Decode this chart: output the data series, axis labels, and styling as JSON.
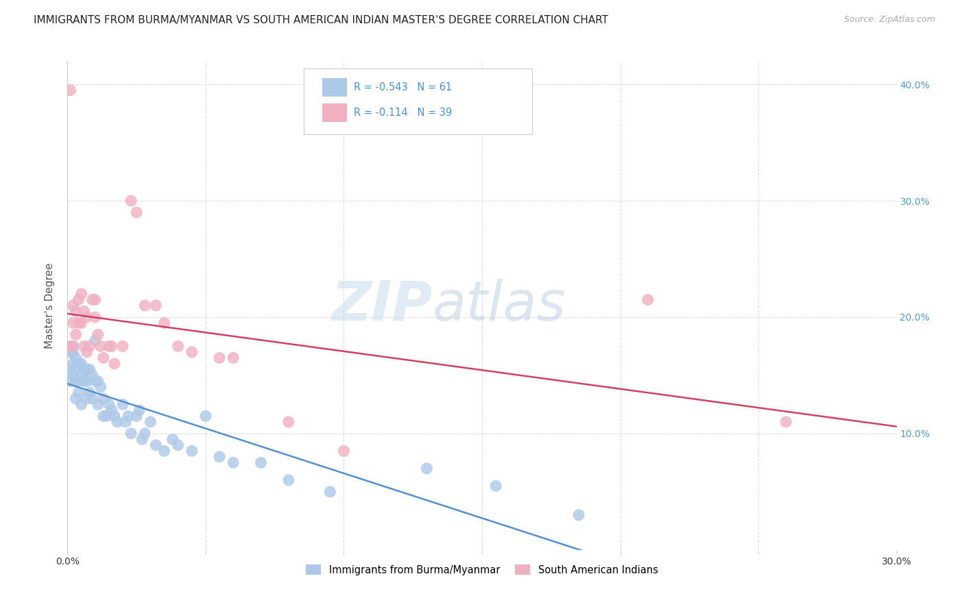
{
  "title": "IMMIGRANTS FROM BURMA/MYANMAR VS SOUTH AMERICAN INDIAN MASTER'S DEGREE CORRELATION CHART",
  "source": "Source: ZipAtlas.com",
  "ylabel": "Master's Degree",
  "watermark": "ZIPatlas",
  "xmin": 0.0,
  "xmax": 0.3,
  "ymin": 0.0,
  "ymax": 0.42,
  "xticks": [
    0.0,
    0.05,
    0.1,
    0.15,
    0.2,
    0.25,
    0.3
  ],
  "yticks": [
    0.0,
    0.1,
    0.2,
    0.3,
    0.4
  ],
  "series": [
    {
      "name": "Immigrants from Burma/Myanmar",
      "R": -0.543,
      "N": 61,
      "color": "#adc8e8",
      "line_color": "#5090d0",
      "points_x": [
        0.001,
        0.001,
        0.001,
        0.002,
        0.002,
        0.002,
        0.002,
        0.003,
        0.003,
        0.003,
        0.003,
        0.004,
        0.004,
        0.004,
        0.005,
        0.005,
        0.005,
        0.006,
        0.006,
        0.007,
        0.007,
        0.007,
        0.008,
        0.008,
        0.009,
        0.009,
        0.01,
        0.01,
        0.011,
        0.011,
        0.012,
        0.013,
        0.013,
        0.014,
        0.015,
        0.016,
        0.017,
        0.018,
        0.02,
        0.021,
        0.022,
        0.023,
        0.025,
        0.026,
        0.027,
        0.028,
        0.03,
        0.032,
        0.035,
        0.038,
        0.04,
        0.045,
        0.05,
        0.055,
        0.06,
        0.07,
        0.08,
        0.095,
        0.13,
        0.155,
        0.185
      ],
      "points_y": [
        0.17,
        0.155,
        0.145,
        0.175,
        0.17,
        0.16,
        0.15,
        0.165,
        0.155,
        0.145,
        0.13,
        0.16,
        0.145,
        0.135,
        0.16,
        0.15,
        0.125,
        0.155,
        0.145,
        0.155,
        0.145,
        0.13,
        0.155,
        0.135,
        0.15,
        0.13,
        0.18,
        0.145,
        0.145,
        0.125,
        0.14,
        0.13,
        0.115,
        0.115,
        0.125,
        0.12,
        0.115,
        0.11,
        0.125,
        0.11,
        0.115,
        0.1,
        0.115,
        0.12,
        0.095,
        0.1,
        0.11,
        0.09,
        0.085,
        0.095,
        0.09,
        0.085,
        0.115,
        0.08,
        0.075,
        0.075,
        0.06,
        0.05,
        0.07,
        0.055,
        0.03
      ]
    },
    {
      "name": "South American Indians",
      "R": -0.114,
      "N": 39,
      "color": "#f0b0c0",
      "line_color": "#d04060",
      "points_x": [
        0.001,
        0.001,
        0.002,
        0.002,
        0.002,
        0.003,
        0.003,
        0.004,
        0.004,
        0.005,
        0.005,
        0.006,
        0.006,
        0.007,
        0.007,
        0.008,
        0.009,
        0.01,
        0.01,
        0.011,
        0.012,
        0.013,
        0.015,
        0.016,
        0.017,
        0.02,
        0.023,
        0.025,
        0.028,
        0.032,
        0.035,
        0.04,
        0.045,
        0.055,
        0.06,
        0.08,
        0.1,
        0.21,
        0.26
      ],
      "points_y": [
        0.395,
        0.175,
        0.21,
        0.195,
        0.175,
        0.205,
        0.185,
        0.215,
        0.195,
        0.22,
        0.195,
        0.205,
        0.175,
        0.2,
        0.17,
        0.175,
        0.215,
        0.215,
        0.2,
        0.185,
        0.175,
        0.165,
        0.175,
        0.175,
        0.16,
        0.175,
        0.3,
        0.29,
        0.21,
        0.21,
        0.195,
        0.175,
        0.17,
        0.165,
        0.165,
        0.11,
        0.085,
        0.215,
        0.11
      ]
    }
  ],
  "background_color": "#ffffff",
  "grid_color": "#dddddd",
  "title_fontsize": 11,
  "axis_label_color": "#5599cc"
}
